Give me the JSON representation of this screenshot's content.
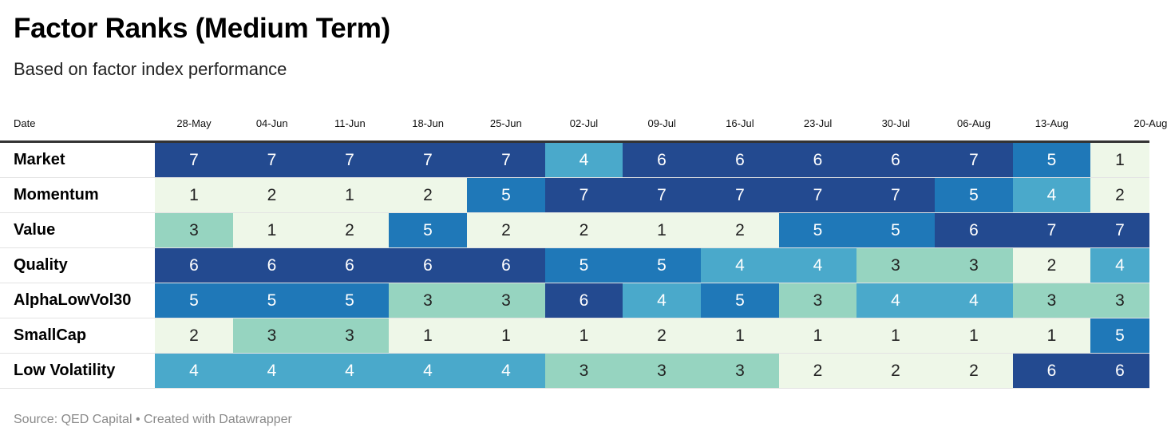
{
  "title": "Factor Ranks (Medium Term)",
  "subtitle": "Based on factor index performance",
  "source": "Source: QED Capital • Created with Datawrapper",
  "colors": {
    "1": "#eef7e8",
    "2": "#eef7e8",
    "3": "#96d4c0",
    "4": "#4aa9cb",
    "5": "#1f78b8",
    "6": "#234a90",
    "7": "#234a90"
  },
  "chart_data": {
    "type": "heatmap",
    "title": "Factor Ranks (Medium Term)",
    "subtitle": "Based on factor index performance",
    "row_header": "Date",
    "columns": [
      "28-May",
      "04-Jun",
      "11-Jun",
      "18-Jun",
      "25-Jun",
      "02-Jul",
      "09-Jul",
      "16-Jul",
      "23-Jul",
      "30-Jul",
      "06-Aug",
      "13-Aug",
      "20-Aug"
    ],
    "rows": [
      {
        "name": "Market",
        "values": [
          7,
          7,
          7,
          7,
          7,
          4,
          6,
          6,
          6,
          6,
          7,
          5,
          1
        ]
      },
      {
        "name": "Momentum",
        "values": [
          1,
          2,
          1,
          2,
          5,
          7,
          7,
          7,
          7,
          7,
          5,
          4,
          2
        ]
      },
      {
        "name": "Value",
        "values": [
          3,
          1,
          2,
          5,
          2,
          2,
          1,
          2,
          5,
          5,
          6,
          7,
          7
        ]
      },
      {
        "name": "Quality",
        "values": [
          6,
          6,
          6,
          6,
          6,
          5,
          5,
          4,
          4,
          3,
          3,
          2,
          4
        ]
      },
      {
        "name": "AlphaLowVol30",
        "values": [
          5,
          5,
          5,
          3,
          3,
          6,
          4,
          5,
          3,
          4,
          4,
          3,
          3
        ]
      },
      {
        "name": "SmallCap",
        "values": [
          2,
          3,
          3,
          1,
          1,
          1,
          2,
          1,
          1,
          1,
          1,
          1,
          5
        ]
      },
      {
        "name": "Low Volatility",
        "values": [
          4,
          4,
          4,
          4,
          4,
          3,
          3,
          3,
          2,
          2,
          2,
          6,
          6
        ]
      }
    ]
  }
}
